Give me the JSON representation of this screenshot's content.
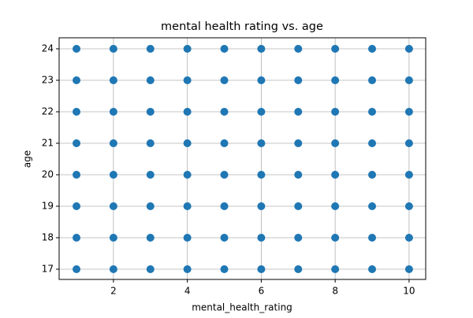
{
  "chart_data": {
    "type": "scatter",
    "title": "mental health rating vs. age",
    "x_label": "mental_health_rating",
    "y_label": "age",
    "x": [
      1,
      1,
      1,
      1,
      1,
      1,
      1,
      1,
      2,
      2,
      2,
      2,
      2,
      2,
      2,
      2,
      3,
      3,
      3,
      3,
      3,
      3,
      3,
      3,
      4,
      4,
      4,
      4,
      4,
      4,
      4,
      4,
      5,
      5,
      5,
      5,
      5,
      5,
      5,
      5,
      6,
      6,
      6,
      6,
      6,
      6,
      6,
      6,
      7,
      7,
      7,
      7,
      7,
      7,
      7,
      7,
      8,
      8,
      8,
      8,
      8,
      8,
      8,
      8,
      9,
      9,
      9,
      9,
      9,
      9,
      9,
      9,
      10,
      10,
      10,
      10,
      10,
      10,
      10,
      10
    ],
    "values": [
      17,
      18,
      19,
      20,
      21,
      22,
      23,
      24,
      17,
      18,
      19,
      20,
      21,
      22,
      23,
      24,
      17,
      18,
      19,
      20,
      21,
      22,
      23,
      24,
      17,
      18,
      19,
      20,
      21,
      22,
      23,
      24,
      17,
      18,
      19,
      20,
      21,
      22,
      23,
      24,
      17,
      18,
      19,
      20,
      21,
      22,
      23,
      24,
      17,
      18,
      19,
      20,
      21,
      22,
      23,
      24,
      17,
      18,
      19,
      20,
      21,
      22,
      23,
      24,
      17,
      18,
      19,
      20,
      21,
      22,
      23,
      24,
      17,
      18,
      19,
      20,
      21,
      22,
      23,
      24
    ],
    "color": "#1f77b4",
    "xlim": [
      0.53,
      10.45
    ],
    "ylim": [
      16.675,
      24.35
    ],
    "xticks": [
      2,
      4,
      6,
      8,
      10
    ],
    "yticks": [
      17,
      18,
      19,
      20,
      21,
      22,
      23,
      24
    ],
    "grid": true
  }
}
